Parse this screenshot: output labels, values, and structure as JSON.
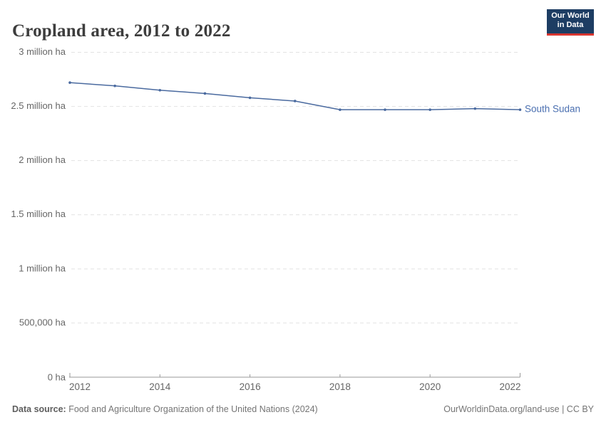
{
  "header": {
    "title": "Cropland area, 2012 to 2022",
    "logo": {
      "line1": "Our World",
      "line2": "in Data"
    }
  },
  "chart_data": {
    "type": "line",
    "title": "Cropland area, 2012 to 2022",
    "xlabel": "",
    "ylabel": "",
    "xlim": [
      2012,
      2022
    ],
    "ylim": [
      0,
      3000000
    ],
    "grid": "horizontal dashed",
    "legend_position": "end-of-line label",
    "x": [
      2012,
      2013,
      2014,
      2015,
      2016,
      2017,
      2018,
      2019,
      2020,
      2021,
      2022
    ],
    "series": [
      {
        "name": "South Sudan",
        "unit": "ha",
        "values": [
          2720000,
          2690000,
          2650000,
          2620000,
          2580000,
          2550000,
          2470000,
          2470000,
          2470000,
          2480000,
          2470000
        ]
      }
    ],
    "y_ticks": [
      {
        "value": 3000000,
        "label": "3 million ha"
      },
      {
        "value": 2500000,
        "label": "2.5 million ha"
      },
      {
        "value": 2000000,
        "label": "2 million ha"
      },
      {
        "value": 1500000,
        "label": "1.5 million ha"
      },
      {
        "value": 1000000,
        "label": "1 million ha"
      },
      {
        "value": 500000,
        "label": "500,000 ha"
      },
      {
        "value": 0,
        "label": "0 ha"
      }
    ],
    "x_ticks": [
      2012,
      2014,
      2016,
      2018,
      2020,
      2022
    ],
    "end_label": "South Sudan"
  },
  "footer": {
    "source_prefix": "Data source:",
    "source_rest": " Food and Agriculture Organization of the United Nations (2024)",
    "credit": "OurWorldinData.org/land-use | CC BY"
  },
  "colors": {
    "line": "#4a6a9f",
    "point": "#4a6a9f",
    "entity_label": "#4a6fb0",
    "grid": "#e2e2e2",
    "axis": "#999999",
    "tick_label": "#666666",
    "title": "#3d3d3d",
    "logo_bg": "#1d3d63",
    "logo_accent": "#d8352f",
    "footer_text": "#757575"
  }
}
